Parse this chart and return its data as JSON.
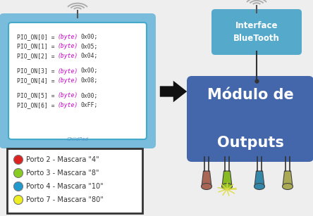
{
  "bg_color": "#eeeeee",
  "tablet_bg": "#7abcdc",
  "tablet_inner_bg": "#ffffff",
  "code_lines": [
    [
      "PIO_ON[0] = ",
      "(byte)",
      "0x00;"
    ],
    [
      "PIO_ON[1] = ",
      "(byte)",
      "0x05;"
    ],
    [
      "PIO_ON[2] = ",
      "(byte)",
      "0x04;"
    ],
    [
      "PIO_ON[3] = ",
      "(byte)",
      "0x00;"
    ],
    [
      "PIO_ON[4] = ",
      "(byte)",
      "0x08;"
    ],
    [
      "PIO_ON[5] = ",
      "(byte)",
      "0x00;"
    ],
    [
      "PIO_ON[6] = ",
      "(byte)",
      "0xFF;"
    ]
  ],
  "code_color_normal": "#333333",
  "code_color_keyword": "#cc00cc",
  "bt_box_color": "#55aacc",
  "bt_text": "Interface\nBlueTooth",
  "module_box_color": "#4466aa",
  "module_text": "Módulo de\n\nOutputs",
  "led_colors": [
    "#aa6655",
    "#88bb22",
    "#3388aa",
    "#aaaa55"
  ],
  "arrow_color": "#111111",
  "legend_items": [
    {
      "color": "#dd2222",
      "text": "Porto 2 - Mascara \"4\""
    },
    {
      "color": "#88cc22",
      "text": "Porto 3 - Mascara \"8\""
    },
    {
      "color": "#2299cc",
      "text": "Porto 4 - Mascara \"10\""
    },
    {
      "color": "#eeee22",
      "text": "Porto 7 - Mascara \"80\""
    }
  ],
  "wifi_color": "#aaaaaa",
  "childpad_color": "#5599cc"
}
